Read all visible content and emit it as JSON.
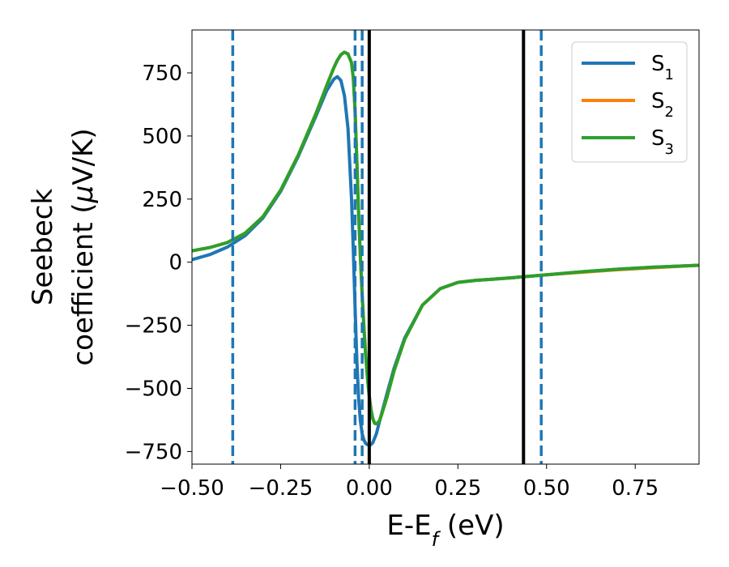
{
  "chart_data": {
    "type": "line",
    "title": "",
    "xlabel": "E-E",
    "xlabel_sub": "f",
    "xlabel_unit": " (eV)",
    "ylabel_line1": "Seebeck",
    "ylabel_line2_pre": "coefficient  (",
    "ylabel_mu": "μ",
    "ylabel_line2_post": "V/K)",
    "xlim": [
      -0.5,
      0.93
    ],
    "ylim": [
      -800,
      920
    ],
    "x_ticks": [
      -0.5,
      -0.25,
      0.0,
      0.25,
      0.5,
      0.75
    ],
    "x_tick_labels": [
      "−0.50",
      "−0.25",
      "0.00",
      "0.25",
      "0.50",
      "0.75"
    ],
    "y_ticks": [
      -750,
      -500,
      -250,
      0,
      250,
      500,
      750
    ],
    "y_tick_labels": [
      "−750",
      "−500",
      "−250",
      "0",
      "250",
      "500",
      "750"
    ],
    "grid": false,
    "legend_position": "top-right",
    "vertical_lines": [
      {
        "x": -0.385,
        "style": "dashed",
        "color": "#1f77b4"
      },
      {
        "x": -0.04,
        "style": "dashed",
        "color": "#1f77b4"
      },
      {
        "x": -0.02,
        "style": "dashed",
        "color": "#1f77b4"
      },
      {
        "x": 0.0,
        "style": "solid",
        "color": "#000000"
      },
      {
        "x": 0.435,
        "style": "solid",
        "color": "#000000"
      },
      {
        "x": 0.485,
        "style": "dashed",
        "color": "#1f77b4"
      }
    ],
    "series": [
      {
        "name": "S",
        "subscript": "1",
        "color": "#1f77b4",
        "x": [
          -0.5,
          -0.45,
          -0.4,
          -0.35,
          -0.3,
          -0.25,
          -0.2,
          -0.15,
          -0.12,
          -0.1,
          -0.09,
          -0.08,
          -0.07,
          -0.06,
          -0.05,
          -0.045,
          -0.04,
          -0.035,
          -0.03,
          -0.025,
          -0.02,
          -0.015,
          -0.01,
          -0.005,
          0.0,
          0.005,
          0.01,
          0.02,
          0.03,
          0.05,
          0.07,
          0.1,
          0.15,
          0.2,
          0.25,
          0.3,
          0.35,
          0.4,
          0.45,
          0.5,
          0.6,
          0.7,
          0.8,
          0.93
        ],
        "y": [
          10,
          30,
          60,
          105,
          175,
          280,
          420,
          580,
          680,
          725,
          735,
          720,
          660,
          530,
          250,
          50,
          -180,
          -390,
          -540,
          -630,
          -680,
          -705,
          -718,
          -723,
          -725,
          -722,
          -715,
          -680,
          -625,
          -520,
          -420,
          -300,
          -170,
          -105,
          -80,
          -72,
          -67,
          -62,
          -56,
          -50,
          -38,
          -28,
          -20,
          -12
        ]
      },
      {
        "name": "S",
        "subscript": "2",
        "color": "#ff7f0e",
        "x": [
          -0.5,
          -0.45,
          -0.4,
          -0.35,
          -0.3,
          -0.25,
          -0.2,
          -0.15,
          -0.12,
          -0.1,
          -0.09,
          -0.08,
          -0.07,
          -0.06,
          -0.05,
          -0.045,
          -0.04,
          -0.035,
          -0.03,
          -0.025,
          -0.02,
          -0.015,
          -0.01,
          -0.005,
          0.0,
          0.005,
          0.01,
          0.015,
          0.02,
          0.025,
          0.03,
          0.05,
          0.07,
          0.1,
          0.15,
          0.2,
          0.25,
          0.3,
          0.35,
          0.4,
          0.45,
          0.5,
          0.6,
          0.7,
          0.8,
          0.93
        ],
        "y": [
          45,
          58,
          78,
          115,
          180,
          285,
          425,
          590,
          700,
          770,
          800,
          822,
          832,
          825,
          790,
          730,
          600,
          400,
          190,
          20,
          -130,
          -260,
          -370,
          -460,
          -530,
          -585,
          -620,
          -638,
          -640,
          -635,
          -625,
          -535,
          -430,
          -305,
          -170,
          -105,
          -80,
          -72,
          -67,
          -62,
          -56,
          -50,
          -40,
          -30,
          -22,
          -12
        ]
      },
      {
        "name": "S",
        "subscript": "3",
        "color": "#2ca02c",
        "x": [
          -0.5,
          -0.45,
          -0.4,
          -0.35,
          -0.3,
          -0.25,
          -0.2,
          -0.15,
          -0.12,
          -0.1,
          -0.09,
          -0.08,
          -0.07,
          -0.06,
          -0.05,
          -0.045,
          -0.04,
          -0.035,
          -0.03,
          -0.025,
          -0.02,
          -0.015,
          -0.01,
          -0.005,
          0.0,
          0.005,
          0.01,
          0.015,
          0.02,
          0.025,
          0.03,
          0.05,
          0.07,
          0.1,
          0.15,
          0.2,
          0.25,
          0.3,
          0.35,
          0.4,
          0.45,
          0.5,
          0.6,
          0.7,
          0.8,
          0.93
        ],
        "y": [
          45,
          58,
          78,
          115,
          180,
          285,
          425,
          590,
          700,
          770,
          800,
          822,
          832,
          825,
          790,
          730,
          600,
          400,
          190,
          20,
          -130,
          -260,
          -370,
          -460,
          -530,
          -585,
          -620,
          -638,
          -640,
          -635,
          -625,
          -535,
          -430,
          -305,
          -170,
          -105,
          -80,
          -72,
          -67,
          -62,
          -56,
          -50,
          -38,
          -28,
          -20,
          -12
        ]
      }
    ]
  }
}
